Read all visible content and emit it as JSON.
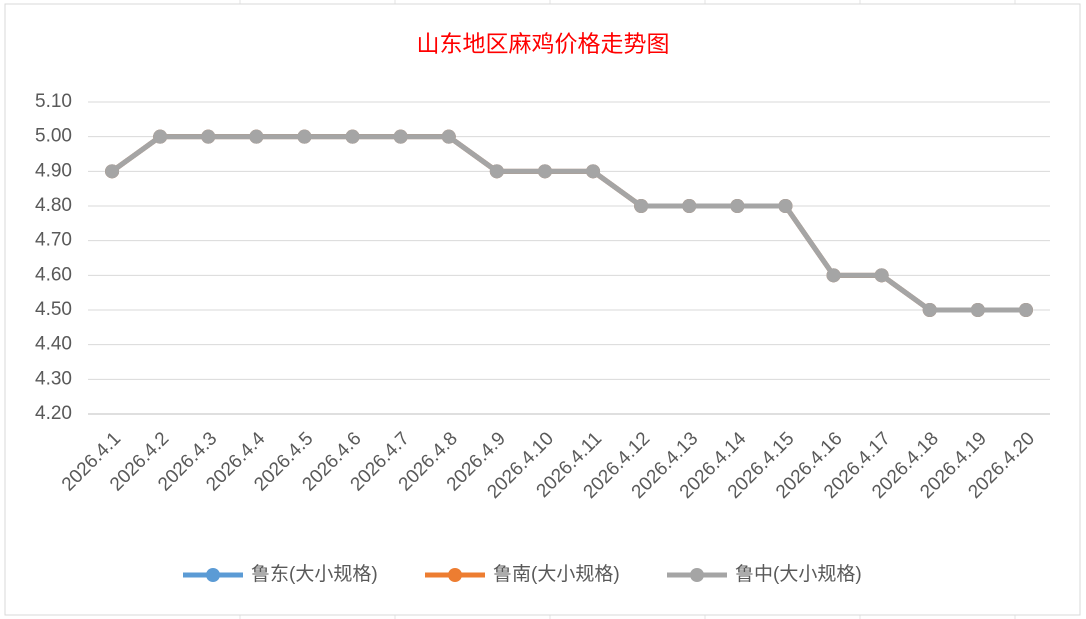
{
  "chart_data": {
    "type": "line",
    "title": "山东地区麻鸡价格走势图",
    "categories": [
      "2026.4.1",
      "2026.4.2",
      "2026.4.3",
      "2026.4.4",
      "2026.4.5",
      "2026.4.6",
      "2026.4.7",
      "2026.4.8",
      "2026.4.9",
      "2026.4.10",
      "2026.4.11",
      "2026.4.12",
      "2026.4.13",
      "2026.4.14",
      "2026.4.15",
      "2026.4.16",
      "2026.4.17",
      "2026.4.18",
      "2026.4.19",
      "2026.4.20"
    ],
    "series": [
      {
        "name": "鲁东(大小规格)",
        "color": "#5b9bd5",
        "values": [
          4.9,
          5,
          5,
          5,
          5,
          5,
          5,
          5,
          4.9,
          4.9,
          4.9,
          4.8,
          4.8,
          4.8,
          4.8,
          4.6,
          4.6,
          4.5,
          4.5,
          4.5
        ]
      },
      {
        "name": "鲁南(大小规格)",
        "color": "#ed7d31",
        "values": [
          4.9,
          5,
          5,
          5,
          5,
          5,
          5,
          5,
          4.9,
          4.9,
          4.9,
          4.8,
          4.8,
          4.8,
          4.8,
          4.6,
          4.6,
          4.5,
          4.5,
          4.5
        ]
      },
      {
        "name": "鲁中(大小规格)",
        "color": "#a5a5a5",
        "values": [
          4.9,
          5,
          5,
          5,
          5,
          5,
          5,
          5,
          4.9,
          4.9,
          4.9,
          4.8,
          4.8,
          4.8,
          4.8,
          4.6,
          4.6,
          4.5,
          4.5,
          4.5
        ]
      }
    ],
    "ylim": [
      4.2,
      5.1
    ],
    "yticks": [
      {
        "value": 4.2,
        "label": "4.20"
      },
      {
        "value": 4.3,
        "label": "4.30"
      },
      {
        "value": 4.4,
        "label": "4.40"
      },
      {
        "value": 4.5,
        "label": "4.50"
      },
      {
        "value": 4.6,
        "label": "4.60"
      },
      {
        "value": 4.7,
        "label": "4.70"
      },
      {
        "value": 4.8,
        "label": "4.80"
      },
      {
        "value": 4.9,
        "label": "4.90"
      },
      {
        "value": 5.0,
        "label": "5.00"
      },
      {
        "value": 5.1,
        "label": "5.10"
      }
    ],
    "grid": true,
    "legend": "bottom"
  }
}
